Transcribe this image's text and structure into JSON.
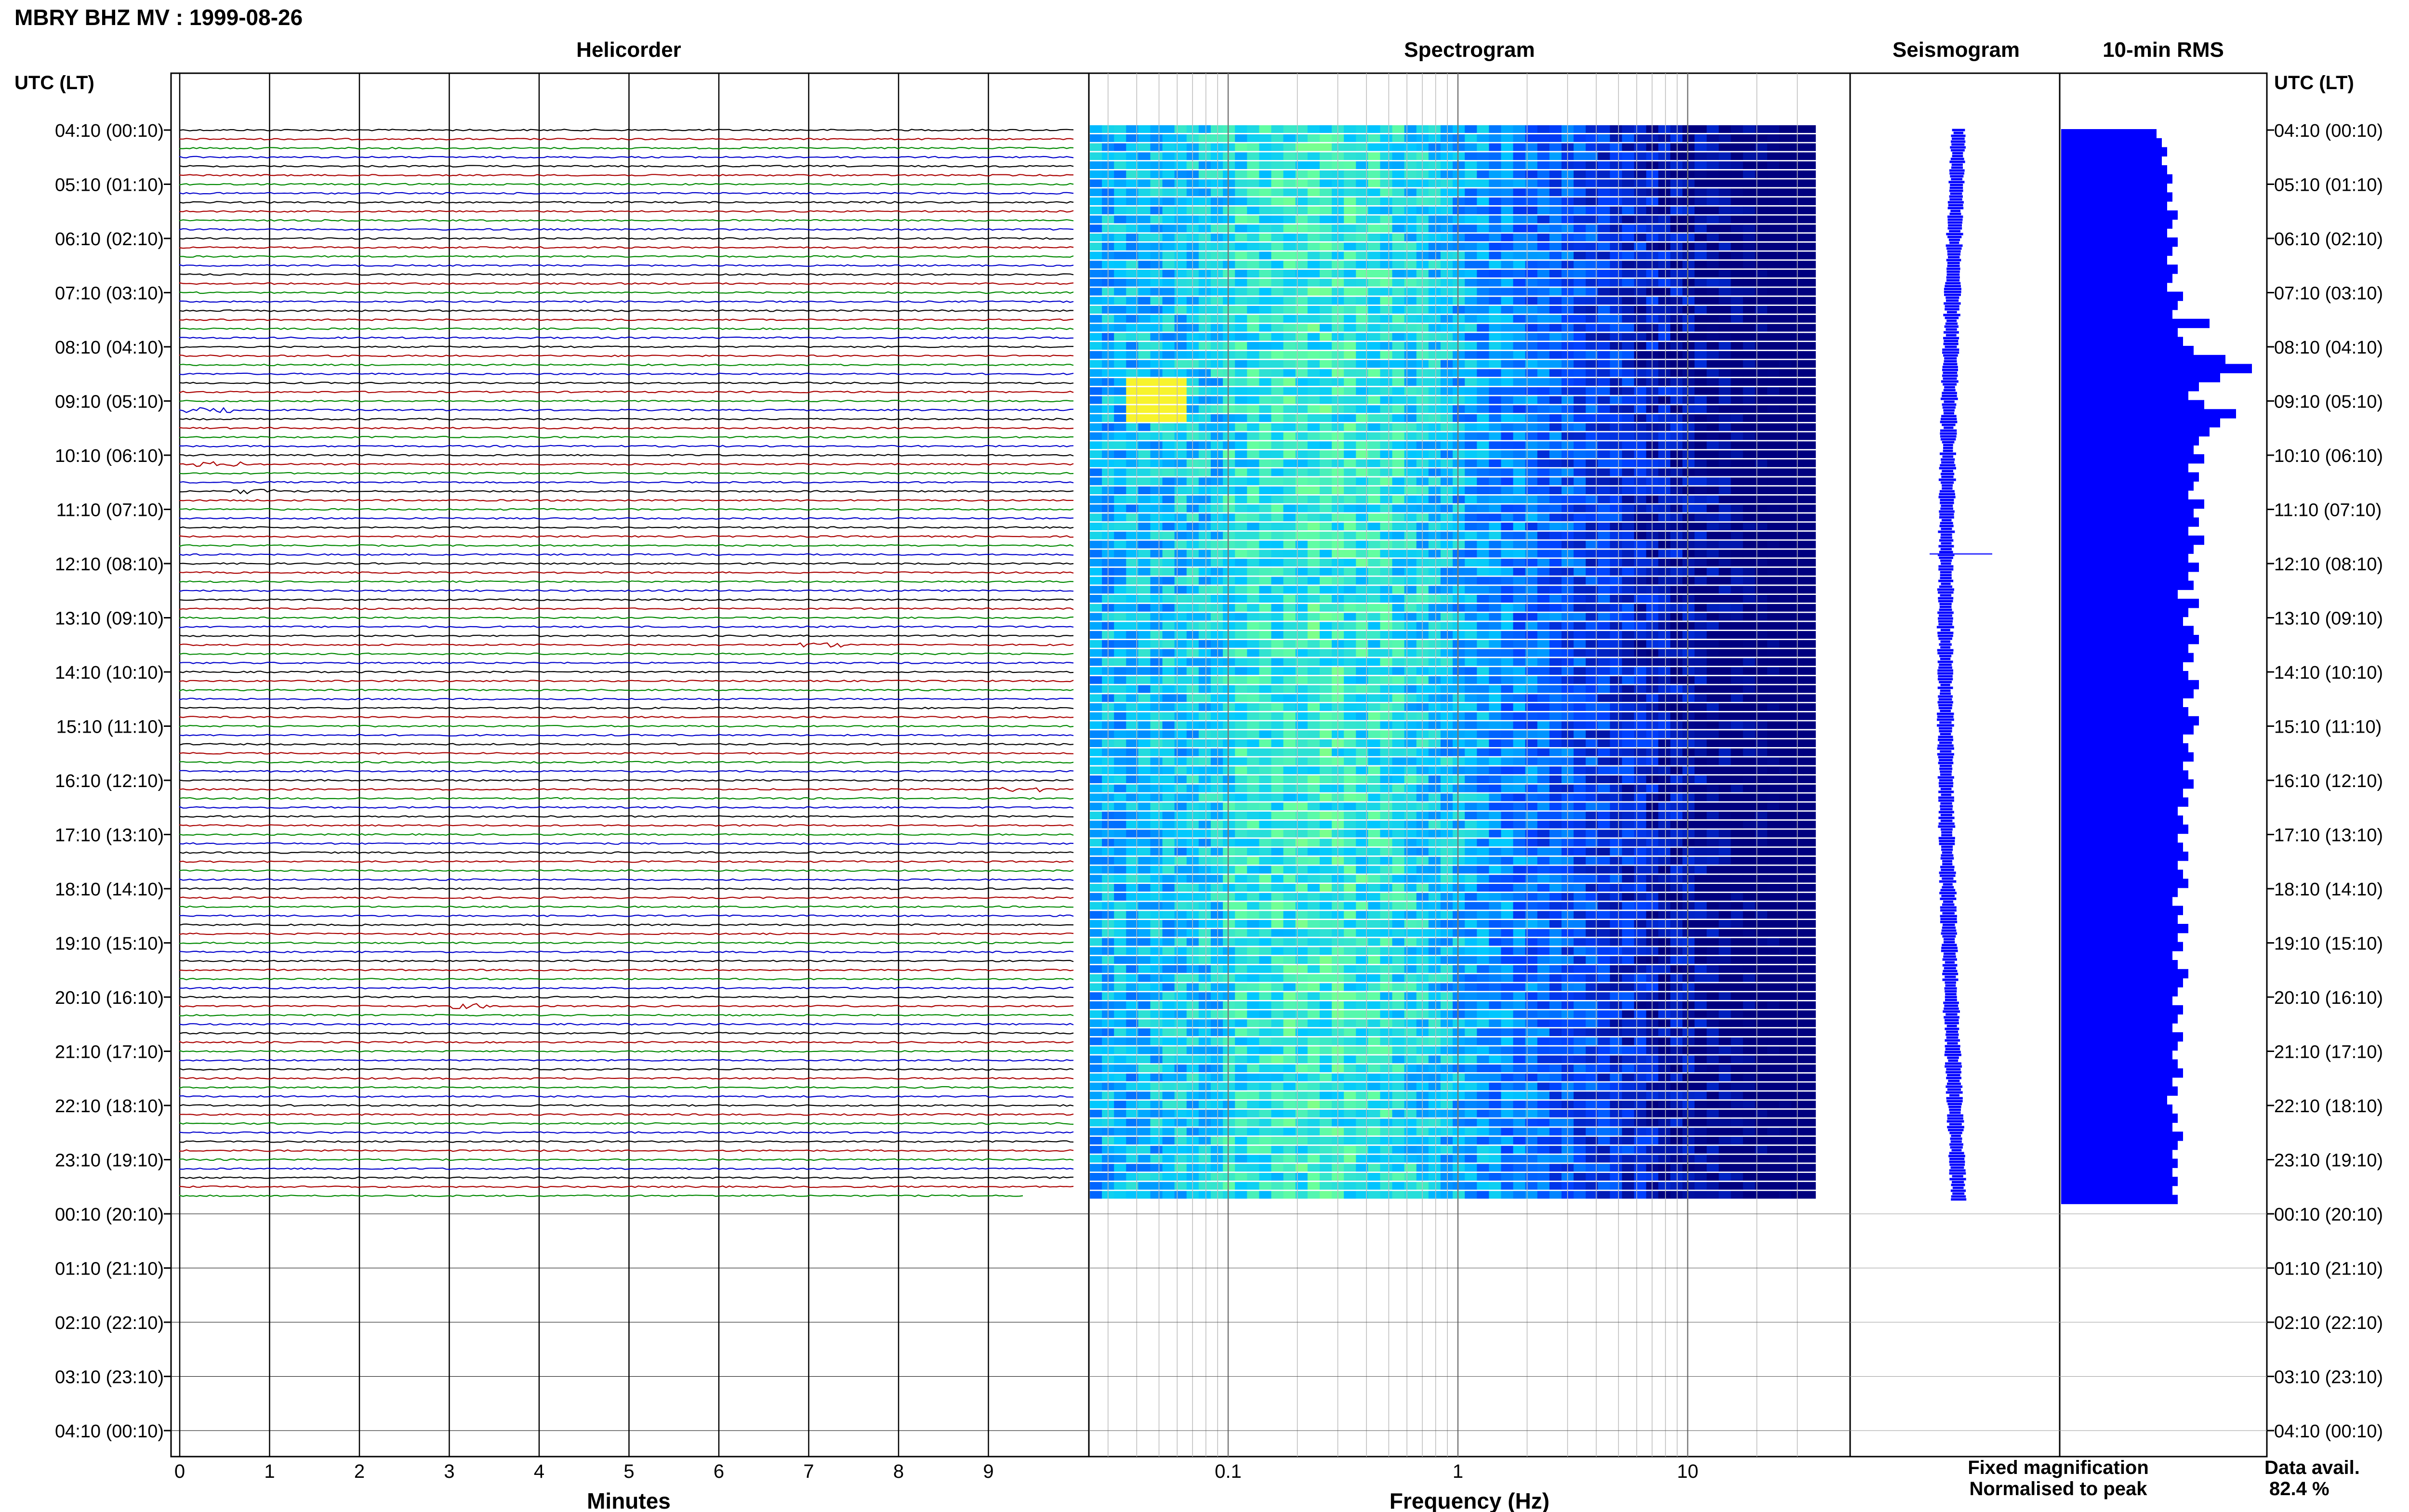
{
  "page": {
    "title": "MBRY BHZ MV : 1999-08-26"
  },
  "panels": {
    "helicorder": "Helicorder",
    "spectrogram": "Spectrogram",
    "seismogram": "Seismogram",
    "rms": "10-min RMS"
  },
  "axes": {
    "left_header": "UTC (LT)",
    "right_header": "UTC (LT)",
    "helicorder_xlabel": "Minutes",
    "spectrogram_xlabel": "Frequency (Hz)"
  },
  "legend": {
    "fixed": "Fixed magnification",
    "normalised": "Normalised to peak",
    "fixed_color": "#0000ff",
    "normalised_color": "#ff0000"
  },
  "availability": {
    "label": "Data avail.",
    "value": "82.4 %"
  },
  "colors": {
    "trace_cycle": [
      "#000000",
      "#aa0000",
      "#008800",
      "#0000cc"
    ],
    "rms_bar": "#0000ff",
    "spectrogram_low": "#00007f",
    "spectrogram_high": "#ffff33"
  },
  "chart_data": [
    {
      "type": "line",
      "name": "Helicorder",
      "title": "Helicorder",
      "xlabel": "Minutes",
      "x_ticks": [
        "0",
        "1",
        "2",
        "3",
        "4",
        "5",
        "6",
        "7",
        "8",
        "9"
      ],
      "xlim": [
        0,
        10
      ],
      "y_ticks": [
        "04:10 (00:10)",
        "05:10 (01:10)",
        "06:10 (02:10)",
        "07:10 (03:10)",
        "08:10 (04:10)",
        "09:10 (05:10)",
        "10:10 (06:10)",
        "11:10 (07:10)",
        "12:10 (08:10)",
        "13:10 (09:10)",
        "14:10 (10:10)",
        "15:10 (11:10)",
        "16:10 (12:10)",
        "17:10 (13:10)",
        "18:10 (14:10)",
        "19:10 (15:10)",
        "20:10 (16:10)",
        "21:10 (17:10)",
        "22:10 (18:10)",
        "23:10 (19:10)",
        "00:10 (20:10)",
        "01:10 (21:10)",
        "02:10 (22:10)",
        "03:10 (23:10)",
        "04:10 (00:10)"
      ],
      "trace_count": 119,
      "events": [
        {
          "row": 31,
          "minute": 0.1
        },
        {
          "row": 37,
          "minute": 0.2
        },
        {
          "row": 40,
          "minute": 0.6
        },
        {
          "row": 57,
          "minute": 6.9
        },
        {
          "row": 73,
          "minute": 9.1
        },
        {
          "row": 97,
          "minute": 3.0
        }
      ]
    },
    {
      "type": "heatmap",
      "name": "Spectrogram",
      "title": "Spectrogram",
      "xlabel": "Frequency (Hz)",
      "x_scale": "log",
      "x_ticks": [
        "0.1",
        "1",
        "10"
      ],
      "xlim": [
        0.025,
        40
      ],
      "rows": 119
    },
    {
      "type": "line",
      "name": "Seismogram",
      "title": "Seismogram",
      "legend": [
        "Fixed magnification",
        "Normalised to peak"
      ]
    },
    {
      "type": "bar",
      "name": "10-min RMS",
      "title": "10-min RMS",
      "orientation": "horizontal",
      "values": [
        0.18,
        0.19,
        0.2,
        0.19,
        0.2,
        0.21,
        0.2,
        0.21,
        0.2,
        0.22,
        0.21,
        0.2,
        0.22,
        0.21,
        0.2,
        0.22,
        0.21,
        0.2,
        0.23,
        0.22,
        0.21,
        0.28,
        0.22,
        0.23,
        0.25,
        0.31,
        0.36,
        0.3,
        0.26,
        0.24,
        0.27,
        0.33,
        0.3,
        0.28,
        0.26,
        0.25,
        0.27,
        0.24,
        0.26,
        0.25,
        0.24,
        0.27,
        0.25,
        0.26,
        0.24,
        0.27,
        0.25,
        0.24,
        0.26,
        0.24,
        0.25,
        0.22,
        0.26,
        0.24,
        0.23,
        0.25,
        0.26,
        0.24,
        0.25,
        0.23,
        0.24,
        0.26,
        0.25,
        0.23,
        0.24,
        0.26,
        0.25,
        0.23,
        0.24,
        0.25,
        0.23,
        0.24,
        0.25,
        0.23,
        0.24,
        0.22,
        0.23,
        0.24,
        0.22,
        0.23,
        0.24,
        0.22,
        0.23,
        0.24,
        0.22,
        0.21,
        0.23,
        0.22,
        0.24,
        0.22,
        0.23,
        0.21,
        0.22,
        0.24,
        0.23,
        0.22,
        0.21,
        0.23,
        0.22,
        0.21,
        0.23,
        0.22,
        0.21,
        0.22,
        0.23,
        0.21,
        0.22,
        0.2,
        0.21,
        0.22,
        0.21,
        0.23,
        0.22,
        0.21,
        0.22,
        0.21,
        0.22,
        0.21,
        0.22
      ]
    }
  ]
}
